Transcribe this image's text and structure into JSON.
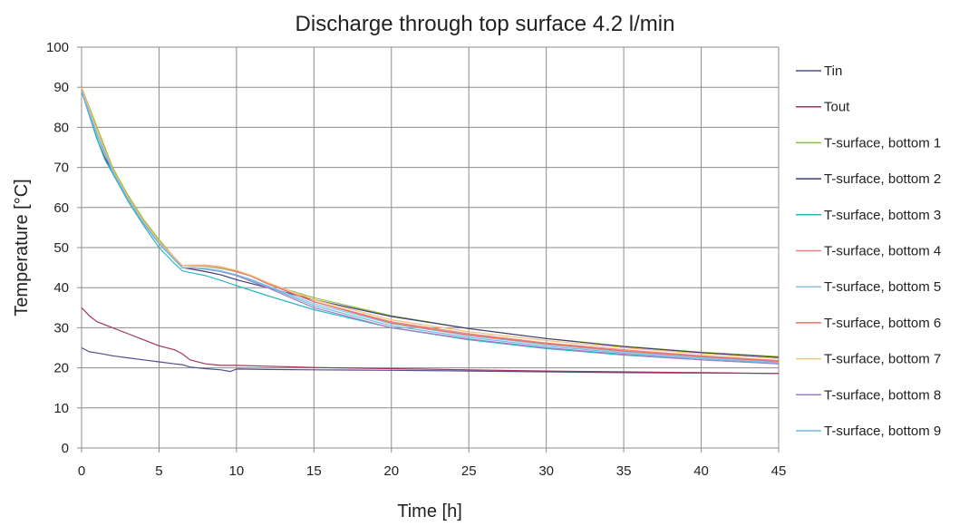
{
  "chart_data": {
    "type": "line",
    "title": "Discharge through top surface 4.2 l/min",
    "xlabel": "Time [h]",
    "ylabel": "Temperature [°C]",
    "xlim": [
      0,
      45
    ],
    "ylim": [
      0,
      100
    ],
    "x_ticks": [
      0,
      5,
      10,
      15,
      20,
      25,
      30,
      35,
      40,
      45
    ],
    "y_ticks": [
      0,
      10,
      20,
      30,
      40,
      50,
      60,
      70,
      80,
      90,
      100
    ],
    "grid": true,
    "legend_position": "right",
    "series": [
      {
        "name": "Tin",
        "color": "#4f4f8f",
        "x": [
          0,
          0.5,
          1,
          2,
          3,
          4,
          5,
          6,
          6.5,
          7,
          8,
          9,
          9.6,
          10,
          12,
          15,
          20,
          25,
          30,
          35,
          40,
          45
        ],
        "y": [
          25,
          24,
          23.7,
          23,
          22.5,
          22,
          21.5,
          21,
          20.8,
          20.2,
          19.8,
          19.5,
          19.1,
          19.7,
          19.6,
          19.5,
          19.4,
          19.2,
          19,
          18.8,
          18.7,
          18.6
        ]
      },
      {
        "name": "Tout",
        "color": "#a0365a",
        "x": [
          0,
          0.5,
          1,
          2,
          3,
          4,
          5,
          6,
          6.5,
          7,
          8,
          9,
          10,
          12,
          15,
          20,
          25,
          30,
          35,
          40,
          45
        ],
        "y": [
          35,
          33,
          31.5,
          30,
          28.5,
          27,
          25.5,
          24.5,
          23.5,
          22,
          21,
          20.6,
          20.6,
          20.4,
          20.1,
          19.8,
          19.5,
          19.2,
          19,
          18.8,
          18.6
        ]
      },
      {
        "name": "T-surface, bottom 1",
        "color": "#8fbf3f",
        "x": [
          0,
          1,
          2,
          3,
          4,
          5,
          6,
          6.5,
          7,
          8,
          9,
          10,
          11,
          12,
          15,
          20,
          25,
          30,
          35,
          40,
          45
        ],
        "y": [
          90,
          80,
          70,
          63,
          57,
          52,
          47.5,
          45.5,
          45.5,
          45.3,
          44.8,
          44,
          42.8,
          41,
          37.5,
          33,
          29.8,
          27.3,
          25.4,
          23.9,
          22.8
        ]
      },
      {
        "name": "T-surface, bottom 2",
        "color": "#3c3c7a",
        "x": [
          0,
          1,
          1.5,
          2,
          3,
          4,
          5,
          6,
          6.5,
          7,
          8,
          9,
          10,
          11,
          12,
          15,
          20,
          25,
          30,
          35,
          40,
          45
        ],
        "y": [
          89,
          77,
          72.5,
          69,
          62,
          56,
          51,
          47,
          45,
          44.7,
          44,
          43.2,
          42,
          41,
          40,
          37,
          32.8,
          29.8,
          27.3,
          25.3,
          23.8,
          22.6
        ]
      },
      {
        "name": "T-surface, bottom 3",
        "color": "#2ab8c0",
        "x": [
          0,
          1,
          1.5,
          2,
          3,
          4,
          5,
          6,
          6.5,
          7,
          8,
          9,
          10,
          12,
          15,
          20,
          25,
          30,
          35,
          40,
          45
        ],
        "y": [
          89,
          77,
          72,
          68.5,
          61.5,
          55.5,
          50,
          46,
          44.2,
          43.8,
          43,
          41.8,
          40.5,
          38,
          34.5,
          30,
          27,
          24.8,
          23.2,
          22,
          21
        ]
      },
      {
        "name": "T-surface, bottom 4",
        "color": "#e8827a",
        "x": [
          0,
          1,
          2,
          3,
          4,
          5,
          6,
          6.5,
          7,
          8,
          9,
          10,
          11,
          12,
          15,
          20,
          25,
          30,
          35,
          40,
          45
        ],
        "y": [
          90,
          79,
          69.5,
          62.5,
          56.5,
          51.5,
          47.5,
          45.5,
          45.6,
          45.6,
          45.2,
          44.2,
          42.8,
          41,
          36.5,
          31.5,
          28.5,
          26.2,
          24.5,
          23,
          21.8
        ]
      },
      {
        "name": "T-surface, bottom 5",
        "color": "#8ec3e6",
        "x": [
          0,
          1,
          2,
          3,
          4,
          5,
          6,
          6.5,
          7,
          8,
          9,
          10,
          11,
          12,
          15,
          20,
          25,
          30,
          35,
          40,
          45
        ],
        "y": [
          89,
          78,
          69,
          62,
          56,
          51,
          47,
          45,
          45,
          44.8,
          44.2,
          43.2,
          42,
          40.5,
          36,
          31,
          28,
          25.8,
          24,
          22.6,
          21.4
        ]
      },
      {
        "name": "T-surface, bottom 6",
        "color": "#e87060",
        "x": [
          0,
          1,
          2,
          3,
          4,
          5,
          6,
          6.5,
          7,
          8,
          9,
          10,
          11,
          12,
          15,
          20,
          25,
          30,
          35,
          40,
          45
        ],
        "y": [
          90,
          79,
          69.5,
          62.5,
          56.5,
          51.5,
          47.5,
          45.5,
          45.5,
          45.4,
          45,
          44,
          42.8,
          41,
          36.5,
          31.2,
          28.2,
          26,
          24.2,
          22.8,
          21.6
        ]
      },
      {
        "name": "T-surface, bottom 7",
        "color": "#f2c07a",
        "x": [
          0,
          1,
          2,
          3,
          4,
          5,
          6,
          6.5,
          7,
          8,
          9,
          10,
          11,
          12,
          15,
          20,
          25,
          30,
          35,
          40,
          45
        ],
        "y": [
          90,
          79,
          69.5,
          62.5,
          56.5,
          51.5,
          47.5,
          45.5,
          45.6,
          45.5,
          45.1,
          44.3,
          43,
          41.3,
          37,
          32,
          29,
          26.8,
          25,
          23.5,
          22.3
        ]
      },
      {
        "name": "T-surface, bottom 8",
        "color": "#a07cc8",
        "x": [
          0,
          1,
          2,
          3,
          4,
          5,
          6,
          6.5,
          7,
          8,
          9,
          10,
          11,
          12,
          15,
          20,
          25,
          30,
          35,
          40,
          45
        ],
        "y": [
          89,
          78,
          69,
          62,
          56,
          51,
          47,
          45,
          45,
          44.6,
          44,
          43,
          41.5,
          40,
          35,
          30,
          27.2,
          25,
          23.4,
          22,
          21
        ]
      },
      {
        "name": "T-surface, bottom 9",
        "color": "#70b8e0",
        "x": [
          0,
          1,
          2,
          3,
          4,
          5,
          6,
          6.5,
          7,
          8,
          9,
          10,
          11,
          12,
          15,
          20,
          25,
          30,
          35,
          40,
          45
        ],
        "y": [
          89,
          78,
          69,
          62,
          56,
          51,
          47,
          45,
          45,
          44.7,
          44.1,
          43.2,
          41.8,
          40.3,
          35.5,
          30.5,
          27.6,
          25.4,
          23.7,
          22.3,
          21.2
        ]
      }
    ]
  }
}
